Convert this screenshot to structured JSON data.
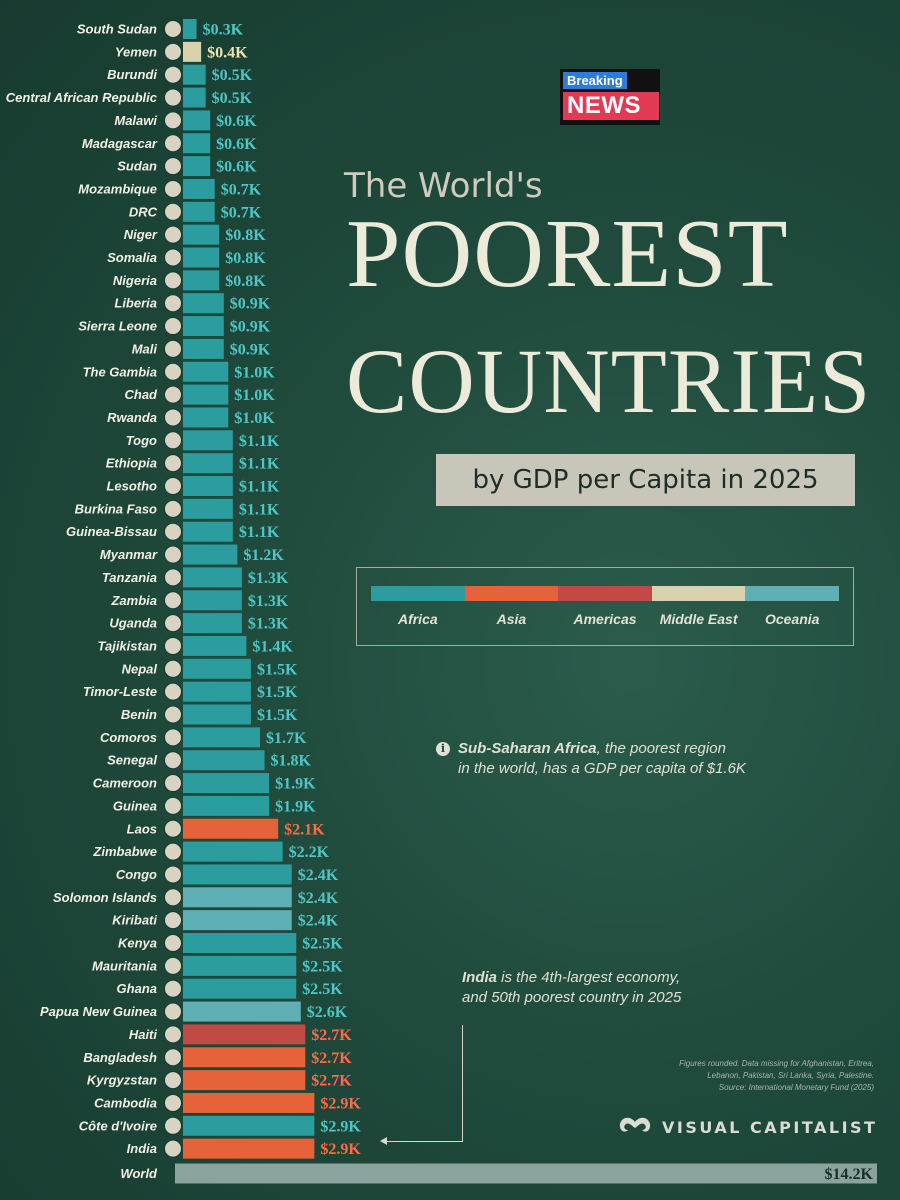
{
  "badge": {
    "top": "Breaking",
    "bottom": "NEWS"
  },
  "title": {
    "small": "The World's",
    "line1": "POOREST",
    "line2": "COUNTRIES",
    "subtitle": "by GDP per Capita in 2025"
  },
  "colors": {
    "Africa": "#2b9d9e",
    "Asia": "#e6633a",
    "Americas": "#c24a45",
    "Middle East": "#d8d2ae",
    "Oceania": "#5fb0b5",
    "World": "#8aa39c"
  },
  "legend": [
    "Africa",
    "Asia",
    "Americas",
    "Middle East",
    "Oceania"
  ],
  "notes": {
    "sub_saharan_bold": "Sub-Saharan Africa",
    "sub_saharan_line1_rest": ", the poorest region",
    "sub_saharan_line2": "in the world, has a GDP per capita of $1.6K",
    "india_bold": "India",
    "india_line1_rest": " is the 4th-largest economy,",
    "india_line2": "and 50th poorest country in 2025"
  },
  "footnote": {
    "line1": "Figures rounded. Data missing for Afghanistan, Eritrea,",
    "line2": "Lebanon, Pakistan, Sri Lanka, Syria, Palestine.",
    "line3": "Source: International Monetary Fund (2025)"
  },
  "brand": "VISUAL CAPITALIST",
  "chart_data": {
    "type": "bar",
    "orientation": "horizontal",
    "unit": "USD thousands (GDP per capita, 2025)",
    "rows": [
      {
        "country": "South Sudan",
        "value": 0.3,
        "label": "$0.3K",
        "region": "Africa"
      },
      {
        "country": "Yemen",
        "value": 0.4,
        "label": "$0.4K",
        "region": "Middle East"
      },
      {
        "country": "Burundi",
        "value": 0.5,
        "label": "$0.5K",
        "region": "Africa"
      },
      {
        "country": "Central African Republic",
        "value": 0.5,
        "label": "$0.5K",
        "region": "Africa"
      },
      {
        "country": "Malawi",
        "value": 0.6,
        "label": "$0.6K",
        "region": "Africa"
      },
      {
        "country": "Madagascar",
        "value": 0.6,
        "label": "$0.6K",
        "region": "Africa"
      },
      {
        "country": "Sudan",
        "value": 0.6,
        "label": "$0.6K",
        "region": "Africa"
      },
      {
        "country": "Mozambique",
        "value": 0.7,
        "label": "$0.7K",
        "region": "Africa"
      },
      {
        "country": "DRC",
        "value": 0.7,
        "label": "$0.7K",
        "region": "Africa"
      },
      {
        "country": "Niger",
        "value": 0.8,
        "label": "$0.8K",
        "region": "Africa"
      },
      {
        "country": "Somalia",
        "value": 0.8,
        "label": "$0.8K",
        "region": "Africa"
      },
      {
        "country": "Nigeria",
        "value": 0.8,
        "label": "$0.8K",
        "region": "Africa"
      },
      {
        "country": "Liberia",
        "value": 0.9,
        "label": "$0.9K",
        "region": "Africa"
      },
      {
        "country": "Sierra Leone",
        "value": 0.9,
        "label": "$0.9K",
        "region": "Africa"
      },
      {
        "country": "Mali",
        "value": 0.9,
        "label": "$0.9K",
        "region": "Africa"
      },
      {
        "country": "The Gambia",
        "value": 1.0,
        "label": "$1.0K",
        "region": "Africa"
      },
      {
        "country": "Chad",
        "value": 1.0,
        "label": "$1.0K",
        "region": "Africa"
      },
      {
        "country": "Rwanda",
        "value": 1.0,
        "label": "$1.0K",
        "region": "Africa"
      },
      {
        "country": "Togo",
        "value": 1.1,
        "label": "$1.1K",
        "region": "Africa"
      },
      {
        "country": "Ethiopia",
        "value": 1.1,
        "label": "$1.1K",
        "region": "Africa"
      },
      {
        "country": "Lesotho",
        "value": 1.1,
        "label": "$1.1K",
        "region": "Africa"
      },
      {
        "country": "Burkina Faso",
        "value": 1.1,
        "label": "$1.1K",
        "region": "Africa"
      },
      {
        "country": "Guinea-Bissau",
        "value": 1.1,
        "label": "$1.1K",
        "region": "Africa"
      },
      {
        "country": "Myanmar",
        "value": 1.2,
        "label": "$1.2K",
        "region": "Africa"
      },
      {
        "country": "Tanzania",
        "value": 1.3,
        "label": "$1.3K",
        "region": "Africa"
      },
      {
        "country": "Zambia",
        "value": 1.3,
        "label": "$1.3K",
        "region": "Africa"
      },
      {
        "country": "Uganda",
        "value": 1.3,
        "label": "$1.3K",
        "region": "Africa"
      },
      {
        "country": "Tajikistan",
        "value": 1.4,
        "label": "$1.4K",
        "region": "Africa"
      },
      {
        "country": "Nepal",
        "value": 1.5,
        "label": "$1.5K",
        "region": "Africa"
      },
      {
        "country": "Timor-Leste",
        "value": 1.5,
        "label": "$1.5K",
        "region": "Africa"
      },
      {
        "country": "Benin",
        "value": 1.5,
        "label": "$1.5K",
        "region": "Africa"
      },
      {
        "country": "Comoros",
        "value": 1.7,
        "label": "$1.7K",
        "region": "Africa"
      },
      {
        "country": "Senegal",
        "value": 1.8,
        "label": "$1.8K",
        "region": "Africa"
      },
      {
        "country": "Cameroon",
        "value": 1.9,
        "label": "$1.9K",
        "region": "Africa"
      },
      {
        "country": "Guinea",
        "value": 1.9,
        "label": "$1.9K",
        "region": "Africa"
      },
      {
        "country": "Laos",
        "value": 2.1,
        "label": "$2.1K",
        "region": "Asia"
      },
      {
        "country": "Zimbabwe",
        "value": 2.2,
        "label": "$2.2K",
        "region": "Africa"
      },
      {
        "country": "Congo",
        "value": 2.4,
        "label": "$2.4K",
        "region": "Africa"
      },
      {
        "country": "Solomon Islands",
        "value": 2.4,
        "label": "$2.4K",
        "region": "Oceania"
      },
      {
        "country": "Kiribati",
        "value": 2.4,
        "label": "$2.4K",
        "region": "Oceania"
      },
      {
        "country": "Kenya",
        "value": 2.5,
        "label": "$2.5K",
        "region": "Africa"
      },
      {
        "country": "Mauritania",
        "value": 2.5,
        "label": "$2.5K",
        "region": "Africa"
      },
      {
        "country": "Ghana",
        "value": 2.5,
        "label": "$2.5K",
        "region": "Africa"
      },
      {
        "country": "Papua New Guinea",
        "value": 2.6,
        "label": "$2.6K",
        "region": "Oceania"
      },
      {
        "country": "Haiti",
        "value": 2.7,
        "label": "$2.7K",
        "region": "Americas"
      },
      {
        "country": "Bangladesh",
        "value": 2.7,
        "label": "$2.7K",
        "region": "Asia"
      },
      {
        "country": "Kyrgyzstan",
        "value": 2.7,
        "label": "$2.7K",
        "region": "Asia"
      },
      {
        "country": "Cambodia",
        "value": 2.9,
        "label": "$2.9K",
        "region": "Asia"
      },
      {
        "country": "Côte d'Ivoire",
        "value": 2.9,
        "label": "$2.9K",
        "region": "Africa"
      },
      {
        "country": "India",
        "value": 2.9,
        "label": "$2.9K",
        "region": "Asia"
      }
    ],
    "world": {
      "country": "World",
      "value": 14.2,
      "label": "$14.2K",
      "region": "World"
    }
  }
}
